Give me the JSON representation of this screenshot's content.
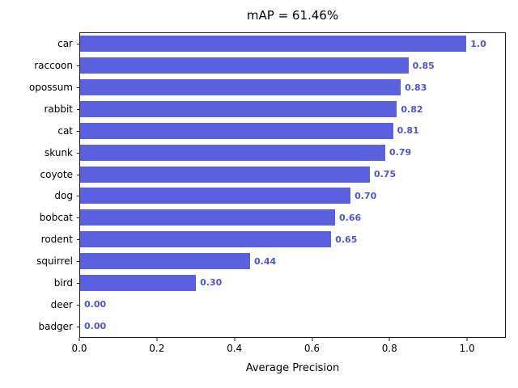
{
  "chart_data": {
    "type": "bar",
    "orientation": "horizontal",
    "title": "mAP = 61.46%",
    "xlabel": "Average Precision",
    "ylabel": "",
    "categories": [
      "car",
      "raccoon",
      "opossum",
      "rabbit",
      "cat",
      "skunk",
      "coyote",
      "dog",
      "bobcat",
      "rodent",
      "squirrel",
      "bird",
      "deer",
      "badger"
    ],
    "values": [
      1.0,
      0.85,
      0.83,
      0.82,
      0.81,
      0.79,
      0.75,
      0.7,
      0.66,
      0.65,
      0.44,
      0.3,
      0.0,
      0.0
    ],
    "value_labels": [
      "1.0",
      "0.85",
      "0.83",
      "0.82",
      "0.81",
      "0.79",
      "0.75",
      "0.70",
      "0.66",
      "0.65",
      "0.44",
      "0.30",
      "0.00",
      "0.00"
    ],
    "xlim": [
      0,
      1.1
    ],
    "x_ticks": [
      0.0,
      0.2,
      0.4,
      0.6,
      0.8,
      1.0
    ],
    "x_tick_labels": [
      "0.0",
      "0.2",
      "0.4",
      "0.6",
      "0.8",
      "1.0"
    ],
    "grid": false,
    "legend": false,
    "bar_color": "#5b61de",
    "value_label_color": "#4d55cf"
  }
}
